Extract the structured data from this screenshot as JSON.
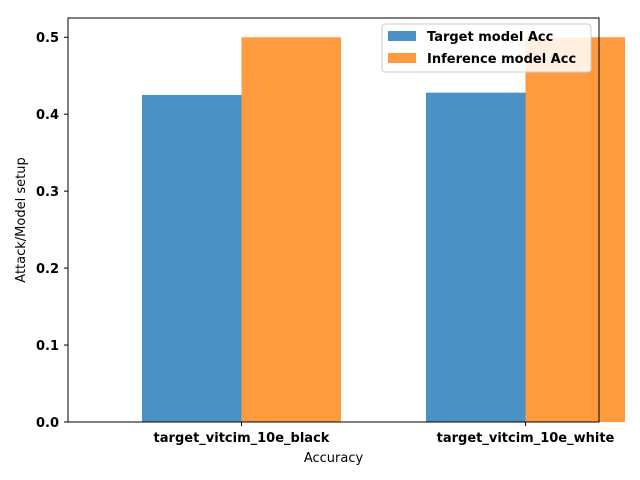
{
  "chart_data": {
    "type": "bar",
    "title": "",
    "xlabel": "Accuracy",
    "ylabel": "Attack/Model setup",
    "categories": [
      "target_vitcim_10e_black",
      "target_vitcim_10e_white"
    ],
    "series": [
      {
        "name": "Target model Acc",
        "values": [
          0.425,
          0.428
        ],
        "color": "#4a92c3"
      },
      {
        "name": "Inference model Acc",
        "values": [
          0.5,
          0.5
        ],
        "color": "#ff9a3f"
      }
    ],
    "ylim": [
      0,
      0.525
    ],
    "yticks": [
      "0.0",
      "0.1",
      "0.2",
      "0.3",
      "0.4",
      "0.5"
    ],
    "ytick_values": [
      0,
      0.1,
      0.2,
      0.3,
      0.4,
      0.5
    ],
    "legend_position": "top-right",
    "grid": false
  }
}
